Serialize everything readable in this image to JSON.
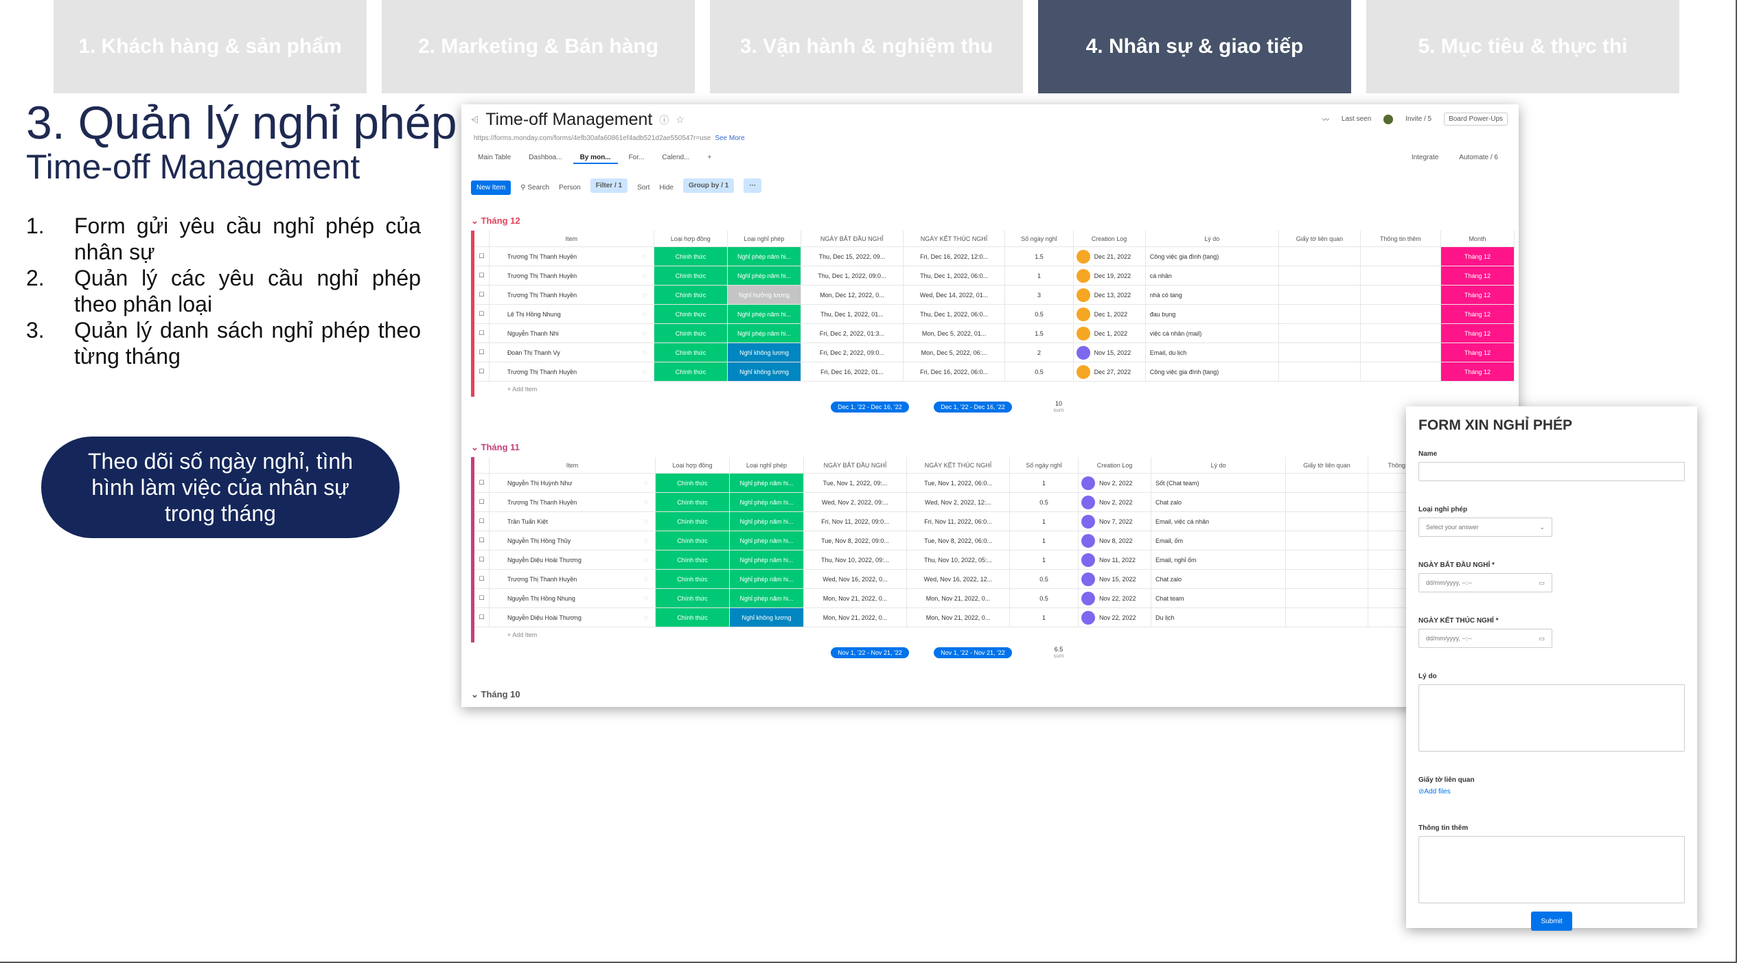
{
  "tabs": [
    {
      "label": "1. Khách hàng & sản phẩm"
    },
    {
      "label": "2. Marketing & Bán hàng"
    },
    {
      "label": "3. Vận hành & nghiệm thu"
    },
    {
      "label": "4. Nhân sự & giao tiếp"
    },
    {
      "label": "5. Mục tiêu & thực thi"
    }
  ],
  "title": "3. Quản lý nghỉ phép",
  "subtitle": "Time-off Management",
  "steps": [
    {
      "num": "1.",
      "text": "Form gửi yêu cầu nghỉ phép của nhân sự"
    },
    {
      "num": "2.",
      "text": "Quản lý các yêu cầu nghỉ phép theo phân loại"
    },
    {
      "num": "3.",
      "text": "Quản lý danh sách nghỉ phép theo từng tháng"
    }
  ],
  "note": "Theo dõi số ngày nghỉ, tình hình làm việc của nhân sự trong tháng",
  "board": {
    "title": "Time-off Management",
    "url": "https://forms.monday.com/forms/4efb30afa60861ef4adb521d2ae550547r=use",
    "see_more": "See More",
    "last_seen": "Last seen",
    "invite": "Invite / 5",
    "power_ups": "Board Power-Ups",
    "views": [
      "Main Table",
      "Dashboa...",
      "By mon...",
      "For...",
      "Calend...",
      "+"
    ],
    "integrate": "Integrate",
    "automate": "Automate / 6",
    "toolbar": {
      "new_item": "New Item",
      "search": "Search",
      "person": "Person",
      "filter": "Filter / 1",
      "sort": "Sort",
      "hide": "Hide",
      "group_by": "Group by / 1",
      "more": "···"
    },
    "columns": [
      "Item",
      "Loại hợp đồng",
      "Loại nghỉ phép",
      "NGÀY BẮT ĐẦU NGHỈ",
      "NGÀY KẾT THÚC NGHỈ",
      "Số ngày nghỉ",
      "Creation Log",
      "Lý do",
      "Giấy tờ liên quan",
      "Thông tin thêm",
      "Month"
    ],
    "add_item": "+ Add Item",
    "groups": [
      {
        "name": "Tháng 12",
        "rows": [
          {
            "item": "Trương Thị Thanh Huyền",
            "contract": "Chính thức",
            "type": "Nghỉ phép năm hi...",
            "type_color": "green",
            "start": "Thu, Dec 15, 2022, 09...",
            "end": "Fri, Dec 16, 2022, 12:0...",
            "days": "1.5",
            "log": "Dec 21, 2022",
            "reason": "Công việc gia đình (tang)",
            "month": "Tháng 12"
          },
          {
            "item": "Trương Thị Thanh Huyền",
            "contract": "Chính thức",
            "type": "Nghỉ phép năm hi...",
            "type_color": "green",
            "start": "Thu, Dec 1, 2022, 09:0...",
            "end": "Thu, Dec 1, 2022, 06:0...",
            "days": "1",
            "log": "Dec 19, 2022",
            "reason": "cá nhân",
            "month": "Tháng 12"
          },
          {
            "item": "Trương Thị Thanh Huyền",
            "contract": "Chính thức",
            "type": "Nghỉ hưởng lương",
            "type_color": "grey",
            "start": "Mon, Dec 12, 2022, 0...",
            "end": "Wed, Dec 14, 2022, 01...",
            "days": "3",
            "log": "Dec 13, 2022",
            "reason": "nhà có tang",
            "month": "Tháng 12"
          },
          {
            "item": "Lê Thị Hồng Nhung",
            "contract": "Chính thức",
            "type": "Nghỉ phép năm hi...",
            "type_color": "green",
            "start": "Thu, Dec 1, 2022, 01...",
            "end": "Thu, Dec 1, 2022, 06:0...",
            "days": "0.5",
            "log": "Dec 1, 2022",
            "reason": "đau bụng",
            "month": "Tháng 12"
          },
          {
            "item": "Nguyễn Thanh Nhi",
            "contract": "Chính thức",
            "type": "Nghỉ phép năm hi...",
            "type_color": "green",
            "start": "Fri, Dec 2, 2022, 01:3...",
            "end": "Mon, Dec 5, 2022, 01...",
            "days": "1.5",
            "log": "Dec 1, 2022",
            "reason": "việc cá nhân (mail)",
            "month": "Tháng 12"
          },
          {
            "item": "Đoàn Thị Thanh Vy",
            "contract": "Chính thức",
            "type": "Nghỉ không lương",
            "type_color": "blue",
            "start": "Fri, Dec 2, 2022, 09:0...",
            "end": "Mon, Dec 5, 2022, 06:...",
            "days": "2",
            "log": "Nov 15, 2022",
            "reason": "Email, du lịch",
            "month": "Tháng 12"
          },
          {
            "item": "Trương Thị Thanh Huyền",
            "contract": "Chính thức",
            "type": "Nghỉ không lương",
            "type_color": "blue",
            "start": "Fri, Dec 16, 2022, 01...",
            "end": "Fri, Dec 16, 2022, 06:0...",
            "days": "0.5",
            "log": "Dec 27, 2022",
            "reason": "Công việc gia đình (tang)",
            "month": "Tháng 12"
          }
        ],
        "sum_start": "Dec 1, '22 - Dec 16, '22",
        "sum_end": "Dec 1, '22 - Dec 16, '22",
        "sum_days": "10",
        "sum_label": "sum"
      },
      {
        "name": "Tháng 11",
        "rows": [
          {
            "item": "Nguyễn Thị Huỳnh Như",
            "contract": "Chính thức",
            "type": "Nghỉ phép năm hi...",
            "type_color": "green",
            "start": "Tue, Nov 1, 2022, 09:...",
            "end": "Tue, Nov 1, 2022, 06:0...",
            "days": "1",
            "log": "Nov 2, 2022",
            "reason": "Sốt (Chat team)",
            "month": ""
          },
          {
            "item": "Trương Thị Thanh Huyền",
            "contract": "Chính thức",
            "type": "Nghỉ phép năm hi...",
            "type_color": "green",
            "start": "Wed, Nov 2, 2022, 09:...",
            "end": "Wed, Nov 2, 2022, 12:...",
            "days": "0.5",
            "log": "Nov 2, 2022",
            "reason": "Chat zalo",
            "month": ""
          },
          {
            "item": "Trần Tuấn Kiệt",
            "contract": "Chính thức",
            "type": "Nghỉ phép năm hi...",
            "type_color": "green",
            "start": "Fri, Nov 11, 2022, 09:0...",
            "end": "Fri, Nov 11, 2022, 06:0...",
            "days": "1",
            "log": "Nov 7, 2022",
            "reason": "Email, việc cá nhân",
            "month": ""
          },
          {
            "item": "Nguyễn Thị Hồng Thủy",
            "contract": "Chính thức",
            "type": "Nghỉ phép năm hi...",
            "type_color": "green",
            "start": "Tue, Nov 8, 2022, 09:0...",
            "end": "Tue, Nov 8, 2022, 06:0...",
            "days": "1",
            "log": "Nov 8, 2022",
            "reason": "Email, ốm",
            "month": ""
          },
          {
            "item": "Nguyễn Diệu Hoài Thương",
            "contract": "Chính thức",
            "type": "Nghỉ phép năm hi...",
            "type_color": "green",
            "start": "Thu, Nov 10, 2022, 09:...",
            "end": "Thu, Nov 10, 2022, 05:...",
            "days": "1",
            "log": "Nov 11, 2022",
            "reason": "Email, nghỉ ốm",
            "month": ""
          },
          {
            "item": "Trương Thị Thanh Huyền",
            "contract": "Chính thức",
            "type": "Nghỉ phép năm hi...",
            "type_color": "green",
            "start": "Wed, Nov 16, 2022, 0...",
            "end": "Wed, Nov 16, 2022, 12...",
            "days": "0.5",
            "log": "Nov 15, 2022",
            "reason": "Chat zalo",
            "month": ""
          },
          {
            "item": "Nguyễn Thị Hồng Nhung",
            "contract": "Chính thức",
            "type": "Nghỉ phép năm hi...",
            "type_color": "green",
            "start": "Mon, Nov 21, 2022, 0...",
            "end": "Mon, Nov 21, 2022, 0...",
            "days": "0.5",
            "log": "Nov 22, 2022",
            "reason": "Chat team",
            "month": ""
          },
          {
            "item": "Nguyễn Diệu Hoài Thương",
            "contract": "Chính thức",
            "type": "Nghỉ không lương",
            "type_color": "blue",
            "start": "Mon, Nov 21, 2022, 0...",
            "end": "Mon, Nov 21, 2022, 0...",
            "days": "1",
            "log": "Nov 22, 2022",
            "reason": "Du lịch",
            "month": ""
          }
        ],
        "sum_start": "Nov 1, '22 - Nov 21, '22",
        "sum_end": "Nov 1, '22 - Nov 21, '22",
        "sum_days": "6.5",
        "sum_label": "sum"
      }
    ],
    "collapsed_group": "Tháng 10"
  },
  "form": {
    "title": "FORM XIN NGHỈ PHÉP",
    "name_label": "Name",
    "type_label": "Loại nghỉ phép",
    "type_placeholder": "Select your answer",
    "start_label": "NGÀY BẮT ĐẦU NGHỈ *",
    "end_label": "NGÀY KẾT THÚC NGHỈ *",
    "date_placeholder": "dd/mm/yyyy, --:--",
    "reason_label": "Lý do",
    "docs_label": "Giấy tờ liên quan",
    "add_files": "Add files",
    "more_label": "Thông tin thêm",
    "submit": "Submit"
  }
}
